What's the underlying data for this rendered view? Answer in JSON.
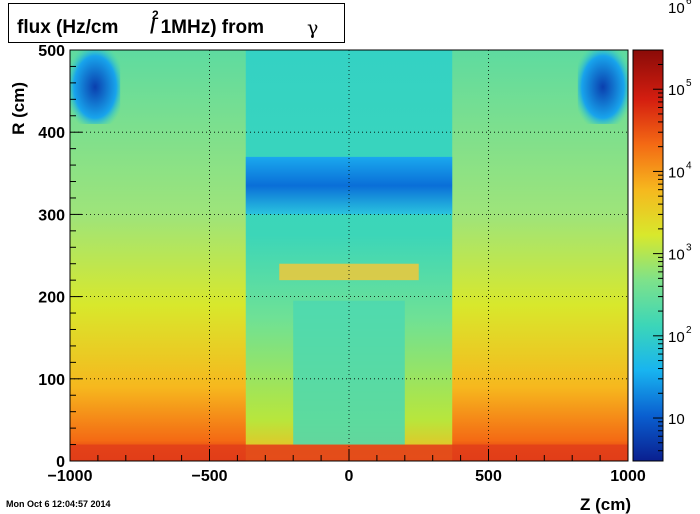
{
  "title": {
    "main": "flux (Hz/cm      / 1MHz) from",
    "sup": "2",
    "particle": "γ"
  },
  "timestamp": "Mon Oct  6 12:04:57 2014",
  "chart_data": {
    "type": "heatmap",
    "title": "flux (Hz/cm2 / 1MHz) from γ",
    "xlabel": "Z (cm)",
    "ylabel": "R (cm)",
    "xlim": [
      -1000,
      1000
    ],
    "ylim": [
      0,
      500
    ],
    "x_ticks": [
      -1000,
      -500,
      0,
      500,
      1000
    ],
    "x_tick_labels": [
      "−1000",
      "−500",
      "0",
      "500",
      "1000"
    ],
    "y_ticks": [
      0,
      100,
      200,
      300,
      400,
      500
    ],
    "y_tick_labels": [
      "0",
      "100",
      "200",
      "300",
      "400",
      "500"
    ],
    "z_scale": "log",
    "zlim": [
      3,
      300000
    ],
    "colorbar_ticks": [
      {
        "value": 10,
        "base": "10",
        "exp": ""
      },
      {
        "value": 100,
        "base": "10",
        "exp": "2"
      },
      {
        "value": 1000,
        "base": "10",
        "exp": "3"
      },
      {
        "value": 10000,
        "base": "10",
        "exp": "4"
      },
      {
        "value": 100000,
        "base": "10",
        "exp": "5"
      },
      {
        "value": 1000000,
        "base": "10",
        "exp": "6"
      }
    ],
    "grid": true,
    "colormap": [
      "#0a1f8f",
      "#0a5fd0",
      "#18b4f0",
      "#3cd6b8",
      "#7ee28a",
      "#d8e82c",
      "#f6b81e",
      "#f46a14",
      "#d41e10",
      "#8a0b08"
    ],
    "regions": [
      {
        "name": "outer-background",
        "z": [
          -1000,
          1000
        ],
        "r": [
          0,
          500
        ],
        "flux": 2500
      },
      {
        "name": "central-column",
        "z": [
          -370,
          370
        ],
        "r": [
          0,
          500
        ],
        "flux": 700
      },
      {
        "name": "low-band-upper",
        "z": [
          -370,
          370
        ],
        "r": [
          300,
          370
        ],
        "flux": 150
      },
      {
        "name": "ring",
        "z": [
          -250,
          250
        ],
        "r": [
          220,
          240
        ],
        "flux": 4000
      },
      {
        "name": "inner-box",
        "z": [
          -200,
          200
        ],
        "r": [
          20,
          195
        ],
        "flux": 900
      },
      {
        "name": "corner-top-left",
        "z": [
          -1000,
          -820
        ],
        "r": [
          410,
          500
        ],
        "flux": 120
      },
      {
        "name": "corner-top-right",
        "z": [
          820,
          1000
        ],
        "r": [
          410,
          500
        ],
        "flux": 120
      },
      {
        "name": "floor",
        "z": [
          -1000,
          1000
        ],
        "r": [
          0,
          20
        ],
        "flux": 120000
      }
    ]
  }
}
